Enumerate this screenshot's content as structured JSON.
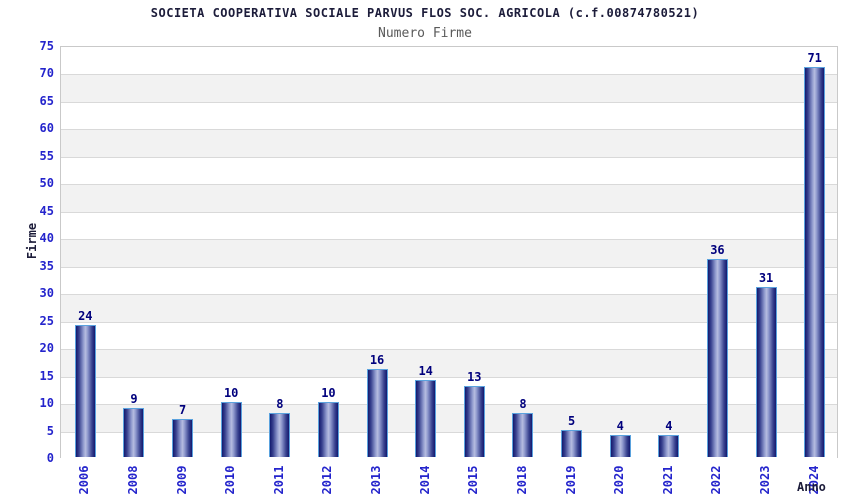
{
  "header": {
    "title": "SOCIETA COOPERATIVA SOCIALE PARVUS FLOS SOC. AGRICOLA (c.f.00874780521)",
    "subtitle": "Numero Firme"
  },
  "chart_data": {
    "type": "bar",
    "title": "SOCIETA COOPERATIVA SOCIALE PARVUS FLOS SOC. AGRICOLA (c.f.00874780521)",
    "subtitle": "Numero Firme",
    "xlabel": "Anno",
    "ylabel": "Firme",
    "categories": [
      "2006",
      "2008",
      "2009",
      "2010",
      "2011",
      "2012",
      "2013",
      "2014",
      "2015",
      "2018",
      "2019",
      "2020",
      "2021",
      "2022",
      "2023",
      "2024"
    ],
    "values": [
      24,
      9,
      7,
      10,
      8,
      10,
      16,
      14,
      13,
      8,
      5,
      4,
      4,
      36,
      31,
      71
    ],
    "ylim": [
      0,
      75
    ],
    "ytick_step": 5,
    "legend": "none",
    "grid": "horizontal gridlines with alternating background bands",
    "colors": {
      "tick_label_blue": "#2424cc",
      "value_label_navy": "#00007d",
      "title_dark": "#1c1c3a",
      "subtitle_gray": "#5a5a5a",
      "bar_border_lightblue": "#5aa2de",
      "bar_gradient_dark": "#13196e",
      "bar_gradient_light": "#b6bde0",
      "band_gray": "#f2f2f2",
      "band_white": "#ffffff",
      "gridline_gray": "#d9d9d9",
      "plot_border": "#c9c9c9"
    }
  }
}
